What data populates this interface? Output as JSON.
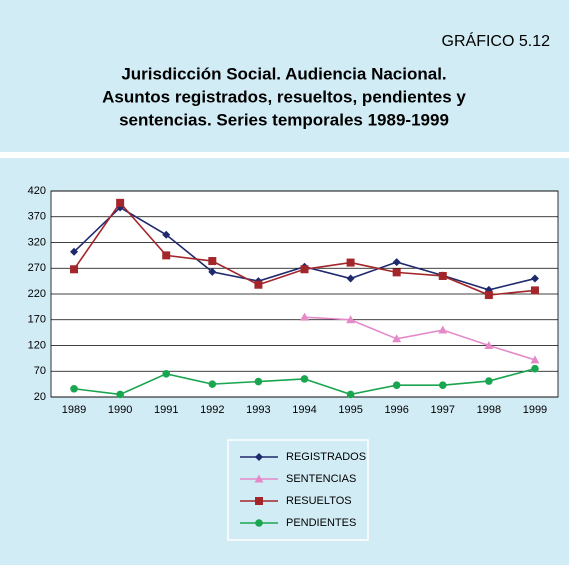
{
  "header": {
    "label": "GRÁFICO 5.12",
    "title_lines": [
      "Jurisdicción Social. Audiencia Nacional.",
      "Asuntos registrados, resueltos, pendientes y",
      "sentencias. Series temporales 1989-1999"
    ]
  },
  "chart_data": {
    "type": "line",
    "categories": [
      "1989",
      "1990",
      "1991",
      "1992",
      "1993",
      "1994",
      "1995",
      "1996",
      "1997",
      "1998",
      "1999"
    ],
    "series": [
      {
        "name": "REGISTRADOS",
        "color": "#1f2a6e",
        "marker": "diamond",
        "values": [
          302,
          388,
          335,
          263,
          245,
          273,
          250,
          282,
          256,
          228,
          250
        ]
      },
      {
        "name": "SENTENCIAS",
        "color": "#e58ac8",
        "marker": "triangle",
        "values": [
          null,
          null,
          null,
          null,
          null,
          175,
          170,
          133,
          150,
          120,
          92
        ]
      },
      {
        "name": "RESUELTOS",
        "color": "#a3262a",
        "marker": "square",
        "values": [
          268,
          397,
          295,
          284,
          238,
          268,
          281,
          262,
          255,
          218,
          227
        ]
      },
      {
        "name": "PENDIENTES",
        "color": "#1aa550",
        "marker": "circle",
        "values": [
          36,
          25,
          65,
          45,
          50,
          55,
          25,
          43,
          43,
          51,
          75
        ]
      }
    ],
    "ylim": [
      20,
      420
    ],
    "yticks": [
      20,
      70,
      120,
      170,
      220,
      270,
      320,
      370,
      420
    ],
    "grid": true,
    "legend": "bottom"
  }
}
